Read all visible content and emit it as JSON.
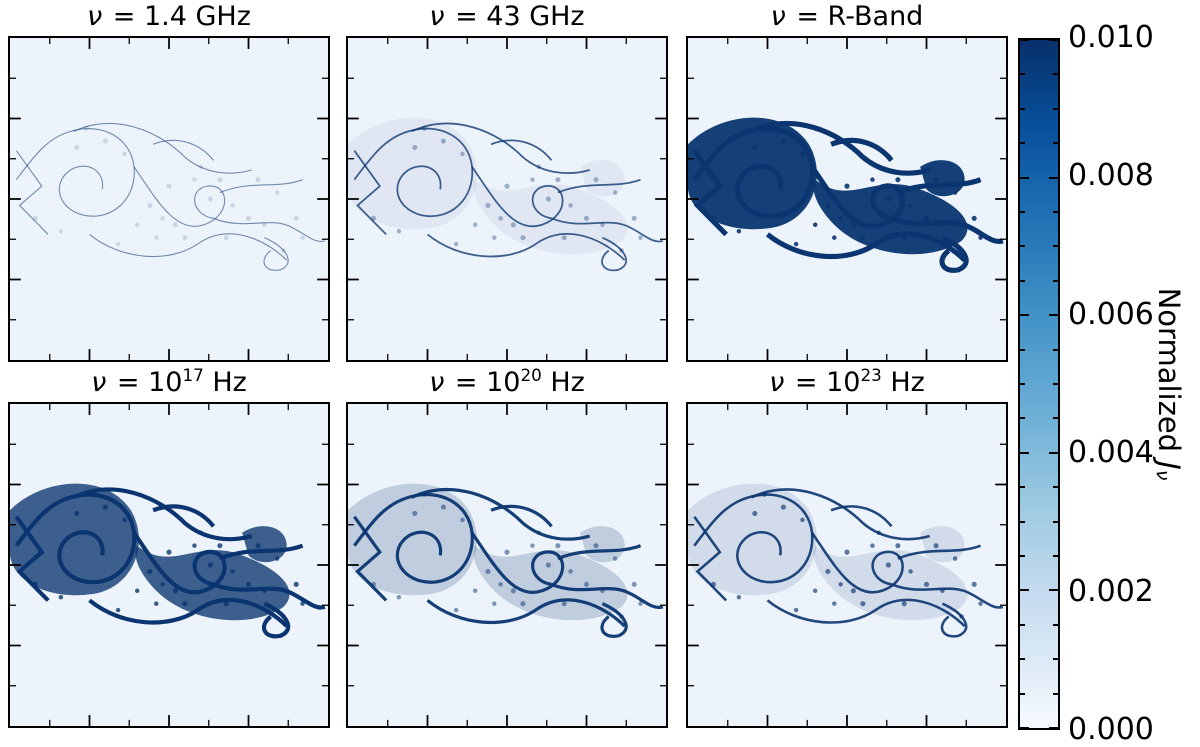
{
  "figure": {
    "panels": [
      {
        "nu": "ν",
        "rest": " = 1.4 GHz",
        "sup": "",
        "post": ""
      },
      {
        "nu": "ν",
        "rest": " = 43 GHz",
        "sup": "",
        "post": ""
      },
      {
        "nu": "ν",
        "rest": " = R-Band",
        "sup": "",
        "post": ""
      },
      {
        "nu": "ν",
        "rest": " = 10",
        "sup": "17",
        "post": " Hz"
      },
      {
        "nu": "ν",
        "rest": " = 10",
        "sup": "20",
        "post": " Hz"
      },
      {
        "nu": "ν",
        "rest": " = 10",
        "sup": "23",
        "post": " Hz"
      }
    ],
    "colorbar": {
      "tick_labels": [
        "0.010",
        "0.008",
        "0.006",
        "0.004",
        "0.002",
        "0.000"
      ],
      "label_prefix": "Normalized ",
      "label_symbol": "J",
      "label_subscript": "ν"
    },
    "colors": {
      "ink": "#0a3570",
      "panel_background": "#edf3fa",
      "colormap_top": "#08306b",
      "colormap_bottom": "#f7fbff"
    }
  },
  "chart_data": {
    "type": "heatmap",
    "layout": "2x3 grid of simulated emission maps sharing one vertical colorbar on the right",
    "panels": [
      {
        "row": 0,
        "col": 0,
        "title": "ν = 1.4 GHz",
        "appearance": "very faint thin dark filaments of a Kelvin-Helmholtz-like mixing layer on pale blue background"
      },
      {
        "row": 0,
        "col": 1,
        "title": "ν = 43 GHz",
        "appearance": "faint filaments, slightly stronger than the 1.4 GHz panel"
      },
      {
        "row": 0,
        "col": 2,
        "title": "ν = R-Band",
        "appearance": "brightest panel; large saturated dark-blue rolled-up vortices filling the mixing layer"
      },
      {
        "row": 1,
        "col": 0,
        "title": "ν = 10^17 Hz",
        "appearance": "bright; large dark vortices with textured speckled interior"
      },
      {
        "row": 1,
        "col": 1,
        "title": "ν = 10^20 Hz",
        "appearance": "moderate; sharp filaments outlining the vortices"
      },
      {
        "row": 1,
        "col": 2,
        "title": "ν = 10^23 Hz",
        "appearance": "moderate speckled filaments tracing the same structures"
      }
    ],
    "colorbar": {
      "label": "Normalized Jν",
      "orientation": "vertical",
      "colormap": "Blues",
      "range": [
        0.0,
        0.01
      ],
      "major_ticks": [
        0.0,
        0.002,
        0.004,
        0.006,
        0.008,
        0.01
      ]
    },
    "axis_ticks": "all panels framed in black with inward tick marks on every edge, no axis number labels"
  }
}
